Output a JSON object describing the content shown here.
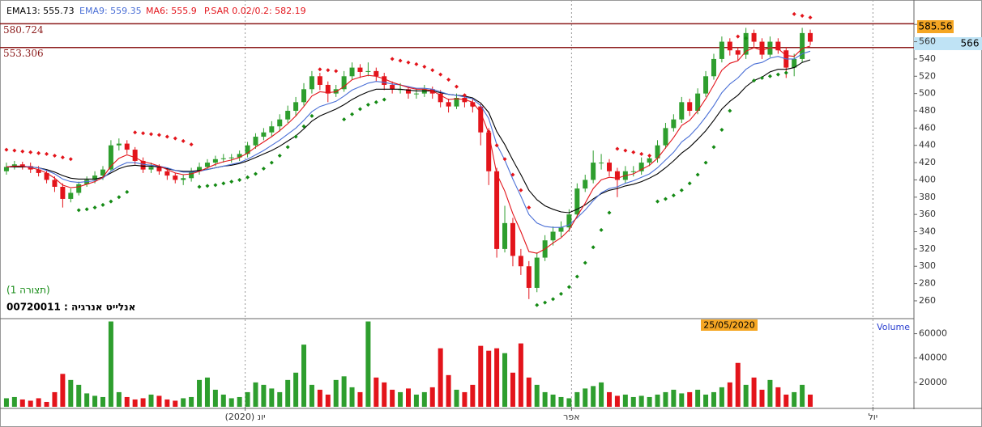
{
  "chart_data": {
    "type": "candlestick",
    "up_color": "#2e9e2e",
    "down_color": "#e3141b",
    "ylim": [
      240.3,
      603.6
    ],
    "yticks": [
      260,
      280,
      300,
      320,
      340,
      360,
      380,
      400,
      420,
      440,
      460,
      480,
      500,
      520,
      540,
      560,
      580
    ],
    "xlim": [
      -0.8,
      112.9
    ],
    "xticks": [
      {
        "value": 29.7,
        "label": "יונ (2020)"
      },
      {
        "value": 70.3,
        "label": "אפר"
      },
      {
        "value": 107.8,
        "label": "יול"
      }
    ],
    "xgrid": true,
    "levels": [
      580.724,
      553.306
    ],
    "level_color": "#8b1a1a",
    "tags": [
      585.56,
      566
    ],
    "date_tag": "25/05/2020",
    "instrument": "00720011 : אנלייט אנרגיה",
    "layout_name": "(תצורה 1)",
    "ohlc": [
      [
        410,
        420,
        406,
        415
      ],
      [
        415,
        422,
        412,
        418
      ],
      [
        418,
        421,
        412,
        416
      ],
      [
        416,
        420,
        408,
        412
      ],
      [
        412,
        416,
        404,
        408
      ],
      [
        408,
        412,
        396,
        400
      ],
      [
        400,
        404,
        386,
        392
      ],
      [
        392,
        396,
        368,
        378
      ],
      [
        378,
        390,
        374,
        385
      ],
      [
        385,
        398,
        382,
        395
      ],
      [
        395,
        404,
        392,
        400
      ],
      [
        400,
        410,
        396,
        405
      ],
      [
        405,
        416,
        400,
        412
      ],
      [
        412,
        446,
        410,
        440
      ],
      [
        440,
        448,
        434,
        442
      ],
      [
        442,
        446,
        430,
        435
      ],
      [
        435,
        438,
        418,
        422
      ],
      [
        422,
        426,
        408,
        412
      ],
      [
        412,
        420,
        408,
        415
      ],
      [
        415,
        418,
        406,
        410
      ],
      [
        410,
        414,
        400,
        405
      ],
      [
        405,
        408,
        396,
        400
      ],
      [
        400,
        406,
        394,
        402
      ],
      [
        402,
        414,
        398,
        410
      ],
      [
        410,
        420,
        406,
        415
      ],
      [
        415,
        424,
        412,
        420
      ],
      [
        420,
        428,
        416,
        424
      ],
      [
        424,
        430,
        420,
        425
      ],
      [
        425,
        430,
        420,
        426
      ],
      [
        426,
        434,
        422,
        430
      ],
      [
        430,
        444,
        426,
        440
      ],
      [
        440,
        454,
        436,
        450
      ],
      [
        450,
        460,
        446,
        455
      ],
      [
        455,
        468,
        450,
        462
      ],
      [
        462,
        476,
        456,
        470
      ],
      [
        470,
        486,
        466,
        480
      ],
      [
        480,
        496,
        474,
        490
      ],
      [
        490,
        512,
        486,
        505
      ],
      [
        505,
        526,
        500,
        520
      ],
      [
        520,
        524,
        504,
        510
      ],
      [
        510,
        514,
        490,
        500
      ],
      [
        500,
        510,
        496,
        505
      ],
      [
        505,
        526,
        502,
        520
      ],
      [
        520,
        536,
        516,
        530
      ],
      [
        530,
        534,
        518,
        525
      ],
      [
        525,
        536,
        520,
        526
      ],
      [
        526,
        530,
        514,
        520
      ],
      [
        520,
        524,
        504,
        510
      ],
      [
        510,
        514,
        500,
        505
      ],
      [
        505,
        512,
        500,
        505
      ],
      [
        505,
        508,
        494,
        500
      ],
      [
        500,
        506,
        494,
        500
      ],
      [
        500,
        510,
        496,
        505
      ],
      [
        505,
        508,
        494,
        500
      ],
      [
        500,
        504,
        484,
        490
      ],
      [
        490,
        494,
        478,
        485
      ],
      [
        485,
        500,
        482,
        495
      ],
      [
        495,
        498,
        484,
        490
      ],
      [
        490,
        494,
        478,
        485
      ],
      [
        485,
        488,
        440,
        455
      ],
      [
        455,
        460,
        394,
        410
      ],
      [
        410,
        414,
        310,
        320
      ],
      [
        320,
        370,
        316,
        350
      ],
      [
        350,
        356,
        300,
        312
      ],
      [
        312,
        320,
        290,
        300
      ],
      [
        300,
        306,
        262,
        275
      ],
      [
        275,
        316,
        270,
        310
      ],
      [
        310,
        336,
        306,
        330
      ],
      [
        330,
        346,
        324,
        340
      ],
      [
        340,
        352,
        334,
        345
      ],
      [
        345,
        366,
        340,
        360
      ],
      [
        360,
        396,
        356,
        390
      ],
      [
        390,
        406,
        386,
        400
      ],
      [
        400,
        434,
        396,
        420
      ],
      [
        420,
        430,
        412,
        420
      ],
      [
        420,
        424,
        404,
        410
      ],
      [
        410,
        414,
        380,
        400
      ],
      [
        400,
        416,
        396,
        410
      ],
      [
        410,
        416,
        404,
        410
      ],
      [
        410,
        426,
        406,
        420
      ],
      [
        420,
        430,
        416,
        425
      ],
      [
        425,
        446,
        420,
        440
      ],
      [
        440,
        466,
        436,
        460
      ],
      [
        460,
        476,
        456,
        470
      ],
      [
        470,
        496,
        466,
        490
      ],
      [
        490,
        494,
        474,
        480
      ],
      [
        480,
        506,
        476,
        500
      ],
      [
        500,
        526,
        496,
        520
      ],
      [
        520,
        546,
        516,
        540
      ],
      [
        540,
        566,
        536,
        560
      ],
      [
        560,
        564,
        544,
        550
      ],
      [
        550,
        554,
        538,
        545
      ],
      [
        545,
        576,
        540,
        570
      ],
      [
        570,
        574,
        554,
        560
      ],
      [
        560,
        564,
        540,
        545
      ],
      [
        545,
        566,
        542,
        560
      ],
      [
        560,
        564,
        546,
        550
      ],
      [
        550,
        554,
        518,
        530
      ],
      [
        530,
        546,
        520,
        540
      ],
      [
        540,
        576,
        536,
        570
      ],
      [
        570,
        574,
        556,
        560
      ]
    ],
    "series": [
      {
        "name": "EMA13: 555.73",
        "color": "#000000",
        "values": [
          415,
          415,
          415,
          415,
          414,
          412,
          409,
          405,
          402,
          401,
          401,
          401,
          403,
          408,
          413,
          416,
          417,
          416,
          416,
          415,
          413,
          411,
          410,
          410,
          411,
          412,
          414,
          416,
          417,
          419,
          422,
          426,
          430,
          434,
          439,
          445,
          451,
          459,
          468,
          474,
          478,
          482,
          487,
          493,
          498,
          502,
          505,
          505,
          505,
          505,
          504,
          503,
          503,
          503,
          501,
          499,
          498,
          497,
          495,
          489,
          478,
          456,
          441,
          423,
          406,
          388,
          377,
          370,
          366,
          363,
          362,
          366,
          371,
          378,
          384,
          388,
          390,
          393,
          395,
          398,
          402,
          407,
          414,
          422,
          431,
          438,
          447,
          457,
          469,
          482,
          491,
          498,
          508,
          515,
          519,
          525,
          528,
          528,
          530,
          536,
          539
        ]
      },
      {
        "name": "EMA9: 559.35",
        "color": "#4a6fd6",
        "values": [
          415,
          416,
          416,
          415,
          414,
          411,
          407,
          401,
          398,
          397,
          398,
          399,
          402,
          410,
          416,
          420,
          420,
          418,
          417,
          416,
          414,
          411,
          409,
          409,
          410,
          412,
          414,
          416,
          418,
          420,
          424,
          429,
          434,
          440,
          446,
          453,
          460,
          469,
          479,
          485,
          488,
          491,
          497,
          504,
          508,
          512,
          514,
          513,
          511,
          510,
          508,
          506,
          506,
          505,
          502,
          499,
          498,
          496,
          494,
          486,
          471,
          441,
          423,
          401,
          381,
          360,
          350,
          346,
          345,
          345,
          348,
          356,
          365,
          376,
          385,
          390,
          392,
          396,
          399,
          403,
          407,
          414,
          423,
          432,
          444,
          451,
          461,
          473,
          486,
          501,
          511,
          518,
          528,
          534,
          536,
          541,
          543,
          540,
          540,
          546,
          549
        ]
      },
      {
        "name": "MA6: 555.9",
        "color": "#e3141b",
        "values": [
          415,
          416,
          416,
          414,
          412,
          408,
          402,
          394,
          391,
          392,
          395,
          398,
          403,
          416,
          425,
          429,
          426,
          421,
          419,
          416,
          412,
          408,
          406,
          407,
          410,
          414,
          418,
          421,
          423,
          426,
          431,
          438,
          444,
          450,
          457,
          465,
          474,
          485,
          497,
          502,
          501,
          502,
          508,
          516,
          519,
          521,
          520,
          517,
          513,
          510,
          507,
          505,
          505,
          503,
          498,
          493,
          494,
          493,
          490,
          478,
          454,
          407,
          387,
          361,
          340,
          317,
          315,
          320,
          327,
          333,
          342,
          358,
          373,
          390,
          400,
          403,
          402,
          405,
          407,
          412,
          417,
          425,
          437,
          449,
          463,
          469,
          480,
          494,
          510,
          527,
          535,
          538,
          549,
          553,
          550,
          553,
          552,
          544,
          543,
          552,
          555
        ]
      }
    ],
    "sar": {
      "name": "P.SAR 0.02/0.2: 582.19",
      "above_color": "#e3141b",
      "below_color": "#148a14",
      "values": [
        435,
        434,
        433,
        432,
        431,
        430,
        428,
        426,
        424,
        365,
        366,
        368,
        371,
        375,
        380,
        386,
        455,
        454,
        453,
        452,
        450,
        448,
        445,
        441,
        392,
        393,
        394,
        396,
        398,
        400,
        403,
        407,
        413,
        420,
        428,
        438,
        450,
        462,
        474,
        528,
        527,
        526,
        470,
        476,
        482,
        487,
        490,
        493,
        540,
        538,
        536,
        534,
        531,
        527,
        522,
        516,
        508,
        498,
        486,
        472,
        456,
        440,
        424,
        406,
        388,
        368,
        255,
        258,
        262,
        268,
        276,
        288,
        304,
        322,
        342,
        362,
        436,
        434,
        432,
        430,
        428,
        375,
        378,
        382,
        388,
        396,
        406,
        420,
        438,
        458,
        480,
        566,
        564,
        515,
        518,
        520,
        522,
        524,
        592,
        590,
        588
      ]
    },
    "volume": {
      "label": "Volume",
      "ylim": [
        0,
        71000
      ],
      "yticks": [
        20000,
        40000,
        60000
      ],
      "values": [
        7000,
        8000,
        6000,
        5000,
        7000,
        4000,
        12000,
        27000,
        22000,
        18000,
        11000,
        9000,
        8000,
        70000,
        12000,
        8000,
        6000,
        7000,
        10000,
        9000,
        6000,
        5000,
        7000,
        8000,
        22000,
        24000,
        14000,
        10000,
        7000,
        8000,
        12000,
        20000,
        18000,
        15000,
        12000,
        22000,
        28000,
        51000,
        18000,
        14000,
        10000,
        22000,
        25000,
        16000,
        12000,
        70000,
        24000,
        20000,
        14000,
        12000,
        15000,
        10000,
        12000,
        16000,
        48000,
        26000,
        14000,
        12000,
        18000,
        50000,
        46000,
        48000,
        44000,
        28000,
        52000,
        24000,
        18000,
        12000,
        10000,
        8000,
        7000,
        12000,
        15000,
        17000,
        20000,
        12000,
        9000,
        10000,
        8000,
        9000,
        8000,
        10000,
        12000,
        14000,
        11000,
        12000,
        14000,
        10000,
        12000,
        16000,
        20000,
        36000,
        18000,
        24000,
        14000,
        22000,
        16000,
        10000,
        12000,
        18000,
        10000
      ]
    }
  }
}
